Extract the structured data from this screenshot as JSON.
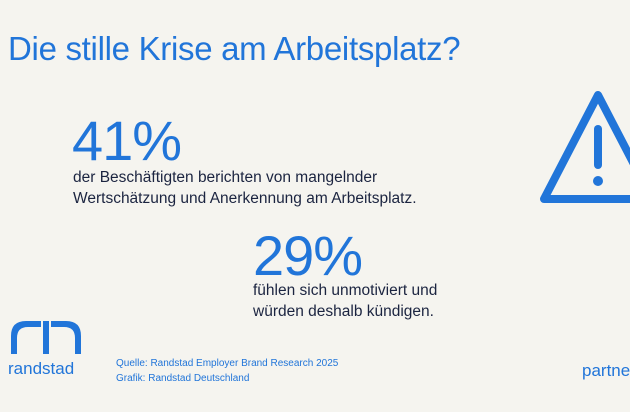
{
  "header": {
    "title": "Die stille Krise am Arbeitsplatz?"
  },
  "stats": [
    {
      "value": "41%",
      "lines": [
        "der Beschäftigten berichten von mangelnder",
        "Wertschätzung und Anerkennung am Arbeitsplatz."
      ]
    },
    {
      "value": "29%",
      "lines": [
        "fühlen sich unmotiviert und",
        "würden deshalb kündigen."
      ]
    }
  ],
  "icons": {
    "warning": "warning-triangle-icon",
    "logo": "randstad-logo-icon"
  },
  "footer": {
    "brand": "randstad",
    "source": "Quelle: Randstad Employer Brand Research 2025",
    "graphic": "Grafik: Randstad Deutschland",
    "partner": "partne"
  },
  "colors": {
    "background": "#f5f4ef",
    "accent": "#2175d9",
    "text": "#1b2440"
  }
}
